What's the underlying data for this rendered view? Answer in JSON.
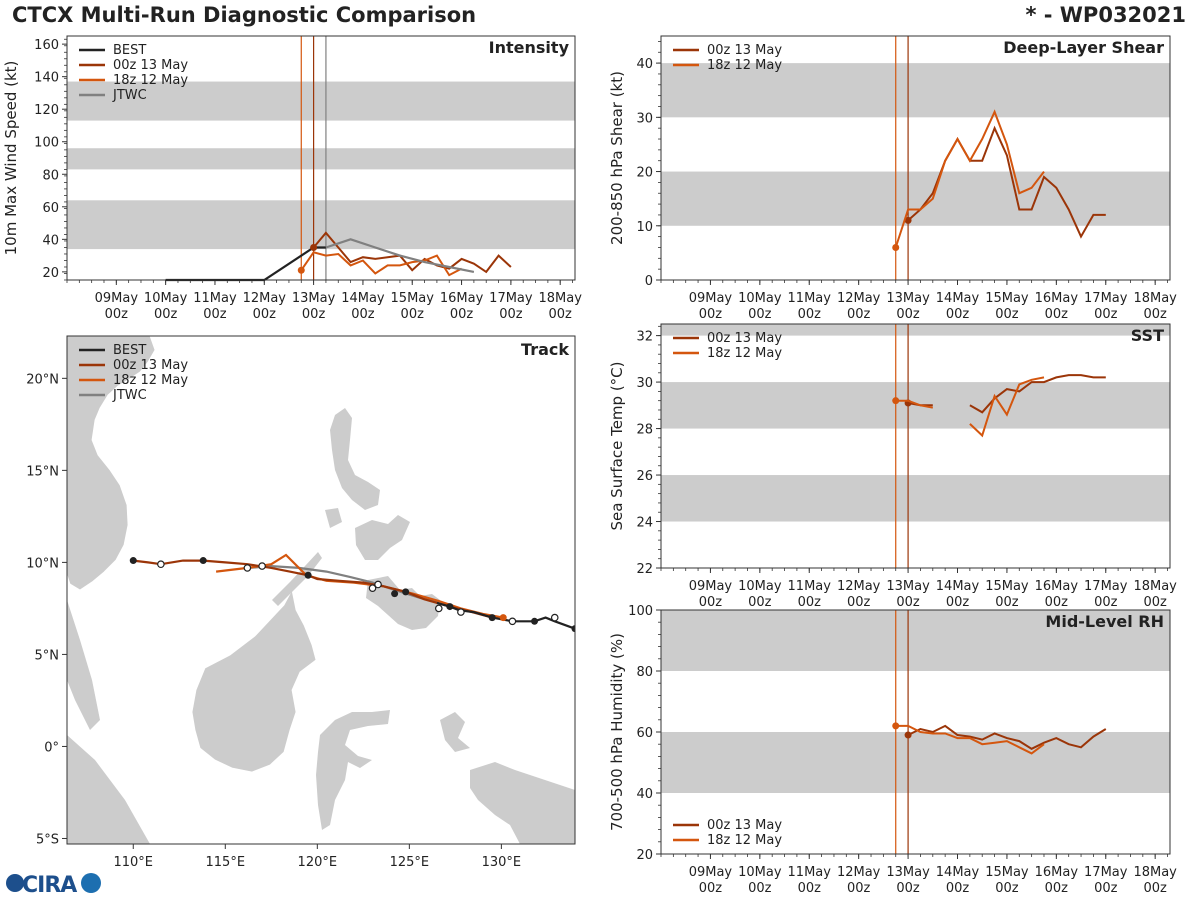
{
  "header": {
    "title": "CTCX Multi-Run Diagnostic Comparison",
    "storm_id": "* - WP032021"
  },
  "colors": {
    "best": "#222222",
    "run_00z": "#9b3508",
    "run_18z": "#d4560e",
    "jtwc": "#808080",
    "band": "#cccccc",
    "land": "#cccccc",
    "coast": "#ffffff"
  },
  "logo": {
    "text": "CIRA"
  },
  "chart_data": [
    {
      "id": "intensity",
      "type": "line",
      "title": "Intensity",
      "ylabel": "10m Max Wind Speed (kt)",
      "ylim": [
        15,
        165
      ],
      "xlim": [
        8.0,
        18.3
      ],
      "yticks": [
        20,
        40,
        60,
        80,
        100,
        120,
        140,
        160
      ],
      "shaded_bands": [
        [
          34,
          64
        ],
        [
          83,
          96
        ],
        [
          113,
          137
        ]
      ],
      "x_tick_labels": [
        [
          "09May",
          "00z"
        ],
        [
          "10May",
          "00z"
        ],
        [
          "11May",
          "00z"
        ],
        [
          "12May",
          "00z"
        ],
        [
          "13May",
          "00z"
        ],
        [
          "14May",
          "00z"
        ],
        [
          "15May",
          "00z"
        ],
        [
          "16May",
          "00z"
        ],
        [
          "17May",
          "00z"
        ],
        [
          "18May",
          "00z"
        ]
      ],
      "vlines": [
        {
          "x": 12.75,
          "series": "18z"
        },
        {
          "x": 13.0,
          "series": "00z"
        },
        {
          "x": 13.25,
          "series": "jtwc"
        }
      ],
      "legend": [
        "BEST",
        "00z 13 May",
        "18z 12 May",
        "JTWC"
      ],
      "series": [
        {
          "name": "BEST",
          "key": "best",
          "x": [
            10.0,
            11.0,
            12.0,
            13.0,
            13.25
          ],
          "y": [
            15,
            15,
            15,
            35,
            35
          ]
        },
        {
          "name": "00z 13 May",
          "key": "00z",
          "x": [
            13.0,
            13.25,
            13.5,
            13.75,
            14.0,
            14.25,
            14.5,
            14.75,
            15.0,
            15.25,
            15.5,
            15.75,
            16.0,
            16.25,
            16.5,
            16.75,
            17.0
          ],
          "y": [
            35,
            44,
            35,
            26,
            29,
            28,
            29,
            30,
            21,
            28,
            24,
            22,
            28,
            25,
            20,
            30,
            23
          ]
        },
        {
          "name": "18z 12 May",
          "key": "18z",
          "x": [
            12.75,
            13.0,
            13.25,
            13.5,
            13.75,
            14.0,
            14.25,
            14.5,
            14.75,
            15.0,
            15.25,
            15.5,
            15.75,
            16.0
          ],
          "y": [
            21,
            32,
            30,
            31,
            24,
            27,
            19,
            24,
            24,
            26,
            27,
            30,
            18,
            22
          ]
        },
        {
          "name": "JTWC",
          "key": "jtwc",
          "x": [
            13.25,
            13.75,
            14.25,
            14.75,
            15.25,
            15.75,
            16.25
          ],
          "y": [
            35,
            40,
            35,
            30,
            26,
            23,
            20
          ]
        }
      ]
    },
    {
      "id": "shear",
      "type": "line",
      "title": "Deep-Layer Shear",
      "ylabel": "200-850 hPa Shear (kt)",
      "ylim": [
        0,
        45
      ],
      "xlim": [
        8.0,
        18.3
      ],
      "yticks": [
        0,
        10,
        20,
        30,
        40
      ],
      "shaded_bands": [
        [
          10,
          20
        ],
        [
          30,
          40
        ]
      ],
      "x_tick_labels": [
        [
          "09May",
          "00z"
        ],
        [
          "10May",
          "00z"
        ],
        [
          "11May",
          "00z"
        ],
        [
          "12May",
          "00z"
        ],
        [
          "13May",
          "00z"
        ],
        [
          "14May",
          "00z"
        ],
        [
          "15May",
          "00z"
        ],
        [
          "16May",
          "00z"
        ],
        [
          "17May",
          "00z"
        ],
        [
          "18May",
          "00z"
        ]
      ],
      "vlines": [
        {
          "x": 12.75,
          "series": "18z"
        },
        {
          "x": 13.0,
          "series": "00z"
        }
      ],
      "legend": [
        "00z 13 May",
        "18z 12 May"
      ],
      "series": [
        {
          "name": "00z 13 May",
          "key": "00z",
          "x": [
            13.0,
            13.25,
            13.5,
            13.75,
            14.0,
            14.25,
            14.5,
            14.75,
            15.0,
            15.25,
            15.5,
            15.75,
            16.0,
            16.25,
            16.5,
            16.75,
            17.0
          ],
          "y": [
            11,
            13,
            16,
            22,
            26,
            22,
            22,
            28,
            23,
            13,
            13,
            19,
            17,
            13,
            8,
            12,
            12
          ]
        },
        {
          "name": "18z 12 May",
          "key": "18z",
          "x": [
            12.75,
            13.0,
            13.25,
            13.5,
            13.75,
            14.0,
            14.25,
            14.5,
            14.75,
            15.0,
            15.25,
            15.5,
            15.75
          ],
          "y": [
            6,
            13,
            13,
            15,
            22,
            26,
            22,
            26,
            31,
            25,
            16,
            17,
            20
          ]
        }
      ]
    },
    {
      "id": "sst",
      "type": "line",
      "title": "SST",
      "ylabel": "Sea Surface Temp (°C)",
      "ylim": [
        22,
        32.5
      ],
      "xlim": [
        8.0,
        18.3
      ],
      "yticks": [
        22,
        24,
        26,
        28,
        30,
        32
      ],
      "shaded_bands": [
        [
          24,
          26
        ],
        [
          28,
          30
        ],
        [
          32,
          32.5
        ]
      ],
      "x_tick_labels": [
        [
          "09May",
          "00z"
        ],
        [
          "10May",
          "00z"
        ],
        [
          "11May",
          "00z"
        ],
        [
          "12May",
          "00z"
        ],
        [
          "13May",
          "00z"
        ],
        [
          "14May",
          "00z"
        ],
        [
          "15May",
          "00z"
        ],
        [
          "16May",
          "00z"
        ],
        [
          "17May",
          "00z"
        ],
        [
          "18May",
          "00z"
        ]
      ],
      "vlines": [
        {
          "x": 12.75,
          "series": "18z"
        },
        {
          "x": 13.0,
          "series": "00z"
        }
      ],
      "legend": [
        "00z 13 May",
        "18z 12 May"
      ],
      "series": [
        {
          "name": "00z 13 May",
          "key": "00z",
          "segments": [
            {
              "x": [
                13.0,
                13.25,
                13.5
              ],
              "y": [
                29.1,
                29.0,
                29.0
              ]
            },
            {
              "x": [
                14.25,
                14.5,
                14.75,
                15.0,
                15.25,
                15.5,
                15.75,
                16.0,
                16.25,
                16.5,
                16.75,
                17.0
              ],
              "y": [
                29.0,
                28.7,
                29.3,
                29.7,
                29.6,
                30.0,
                30.0,
                30.2,
                30.3,
                30.3,
                30.2,
                30.2
              ]
            }
          ]
        },
        {
          "name": "18z 12 May",
          "key": "18z",
          "segments": [
            {
              "x": [
                12.75,
                13.0,
                13.25,
                13.5
              ],
              "y": [
                29.2,
                29.2,
                29.0,
                28.9
              ]
            },
            {
              "x": [
                14.25,
                14.5,
                14.75,
                15.0,
                15.25,
                15.5,
                15.75
              ],
              "y": [
                28.2,
                27.7,
                29.4,
                28.6,
                29.9,
                30.1,
                30.2
              ]
            }
          ]
        }
      ]
    },
    {
      "id": "rh",
      "type": "line",
      "title": "Mid-Level RH",
      "ylabel": "700-500 hPa Humidity (%)",
      "ylim": [
        20,
        100
      ],
      "xlim": [
        8.0,
        18.3
      ],
      "yticks": [
        20,
        40,
        60,
        80,
        100
      ],
      "shaded_bands": [
        [
          40,
          60
        ],
        [
          80,
          100
        ]
      ],
      "x_tick_labels": [
        [
          "09May",
          "00z"
        ],
        [
          "10May",
          "00z"
        ],
        [
          "11May",
          "00z"
        ],
        [
          "12May",
          "00z"
        ],
        [
          "13May",
          "00z"
        ],
        [
          "14May",
          "00z"
        ],
        [
          "15May",
          "00z"
        ],
        [
          "16May",
          "00z"
        ],
        [
          "17May",
          "00z"
        ],
        [
          "18May",
          "00z"
        ]
      ],
      "vlines": [
        {
          "x": 12.75,
          "series": "18z"
        },
        {
          "x": 13.0,
          "series": "00z"
        }
      ],
      "legend": [
        "00z 13 May",
        "18z 12 May"
      ],
      "series": [
        {
          "name": "00z 13 May",
          "key": "00z",
          "x": [
            13.0,
            13.25,
            13.5,
            13.75,
            14.0,
            14.25,
            14.5,
            14.75,
            15.0,
            15.25,
            15.5,
            15.75,
            16.0,
            16.25,
            16.5,
            16.75,
            17.0
          ],
          "y": [
            59,
            61,
            60,
            62,
            59,
            58.5,
            57.5,
            59.5,
            58,
            57,
            54.5,
            56.5,
            58,
            56,
            55,
            58.5,
            61
          ]
        },
        {
          "name": "18z 12 May",
          "key": "18z",
          "x": [
            12.75,
            13.0,
            13.25,
            13.5,
            13.75,
            14.0,
            14.25,
            14.5,
            14.75,
            15.0,
            15.25,
            15.5,
            15.75
          ],
          "y": [
            62,
            62,
            60,
            59.5,
            59.5,
            58,
            58,
            56,
            56.5,
            57,
            55,
            53,
            56
          ]
        }
      ]
    },
    {
      "id": "track",
      "type": "scatter",
      "title": "Track",
      "xlim": [
        106.4,
        134.0
      ],
      "ylim": [
        -5.3,
        22.3
      ],
      "x_ticks": [
        110,
        115,
        120,
        125,
        130
      ],
      "x_tick_labels": [
        "110°E",
        "115°E",
        "120°E",
        "125°E",
        "130°E"
      ],
      "y_ticks": [
        -5,
        0,
        5,
        10,
        15,
        20
      ],
      "y_tick_labels": [
        "5°S",
        "0°",
        "5°N",
        "10°N",
        "15°N",
        "20°N"
      ],
      "legend": [
        "BEST",
        "00z 13 May",
        "18z 12 May",
        "JTWC"
      ],
      "series": [
        {
          "name": "BEST",
          "key": "best",
          "lon": [
            134.0,
            132.9,
            132.4,
            131.8,
            130.6,
            129.5,
            128.5,
            127.7,
            127.2,
            126.5
          ],
          "lat": [
            6.4,
            6.8,
            7.0,
            6.8,
            6.8,
            7.0,
            7.3,
            7.4,
            7.6,
            7.8
          ]
        },
        {
          "name": "00z 13 May",
          "key": "00z",
          "lon": [
            129.5,
            128.4,
            127.2,
            125.8,
            124.8,
            123.6,
            122.5,
            121.2,
            120.0,
            119.5,
            118.5,
            117.5,
            116.2,
            115.0,
            113.8,
            112.7,
            111.5,
            110.8,
            110.0
          ],
          "lat": [
            7.0,
            7.3,
            7.6,
            8.0,
            8.4,
            8.7,
            8.9,
            9.0,
            9.1,
            9.3,
            9.5,
            9.7,
            9.9,
            10.0,
            10.1,
            10.1,
            9.9,
            10.0,
            10.1
          ]
        },
        {
          "name": "18z 12 May",
          "key": "18z",
          "lon": [
            130.1,
            129.0,
            127.8,
            126.6,
            125.2,
            123.6,
            122.0,
            120.5,
            119.4,
            118.3,
            117.5,
            116.2,
            114.5
          ],
          "lat": [
            7.0,
            7.2,
            7.5,
            7.9,
            8.3,
            8.7,
            8.9,
            9.0,
            9.3,
            10.4,
            9.9,
            9.7,
            9.5
          ]
        },
        {
          "name": "JTWC",
          "key": "jtwc",
          "lon": [
            126.6,
            125.5,
            124.2,
            123.0,
            121.8,
            120.5,
            119.0,
            117.5,
            116.3
          ],
          "lat": [
            7.8,
            8.1,
            8.5,
            8.9,
            9.2,
            9.5,
            9.7,
            9.8,
            9.7
          ]
        }
      ],
      "markers_filled": [
        {
          "lon": 134.0,
          "lat": 6.4
        },
        {
          "lon": 131.8,
          "lat": 6.8
        },
        {
          "lon": 129.5,
          "lat": 7.0
        },
        {
          "lon": 127.2,
          "lat": 7.6
        },
        {
          "lon": 124.8,
          "lat": 8.4
        },
        {
          "lon": 124.2,
          "lat": 8.3
        },
        {
          "lon": 119.5,
          "lat": 9.3
        },
        {
          "lon": 113.8,
          "lat": 10.1
        },
        {
          "lon": 110.0,
          "lat": 10.1
        }
      ],
      "markers_open": [
        {
          "lon": 132.9,
          "lat": 7.0
        },
        {
          "lon": 130.6,
          "lat": 6.8
        },
        {
          "lon": 127.8,
          "lat": 7.3
        },
        {
          "lon": 126.6,
          "lat": 7.5
        },
        {
          "lon": 123.3,
          "lat": 8.8
        },
        {
          "lon": 123.0,
          "lat": 8.6
        },
        {
          "lon": 117.0,
          "lat": 9.8
        },
        {
          "lon": 116.2,
          "lat": 9.7
        },
        {
          "lon": 111.5,
          "lat": 9.9
        }
      ],
      "forecast_start_marker": {
        "lon": 130.1,
        "lat": 7.0
      }
    }
  ]
}
